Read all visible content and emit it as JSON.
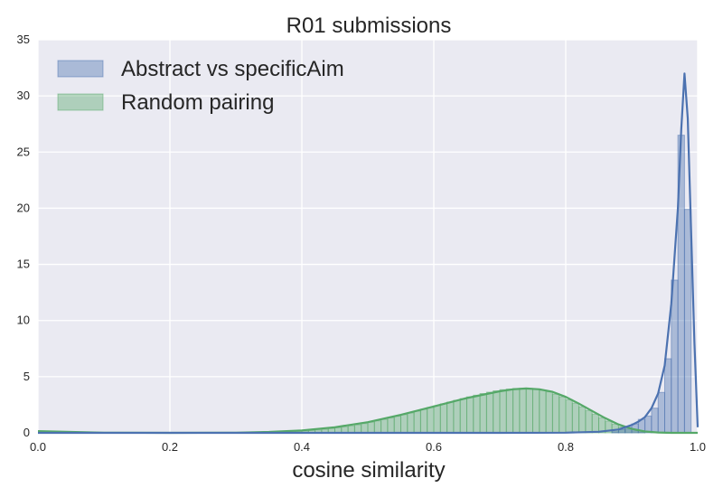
{
  "chart_data": {
    "type": "histogram",
    "title": "R01 submissions",
    "xlabel": "cosine similarity",
    "ylabel": "",
    "xlim": [
      0.0,
      1.0
    ],
    "ylim": [
      0,
      35
    ],
    "grid": true,
    "legend_position": "top-left",
    "x_ticks": [
      "0.0",
      "0.2",
      "0.4",
      "0.6",
      "0.8",
      "1.0"
    ],
    "y_ticks": [
      "0",
      "5",
      "10",
      "15",
      "20",
      "25",
      "30",
      "35"
    ],
    "colors": {
      "plot_background": "#eaeaf2",
      "grid": "#ffffff",
      "series1": "#4c72b0",
      "series2": "#55a868"
    },
    "series": [
      {
        "name": "Abstract vs specificAim",
        "hist": {
          "bin_left_edges": [
            0.87,
            0.88,
            0.89,
            0.9,
            0.91,
            0.92,
            0.93,
            0.94,
            0.95,
            0.96,
            0.97,
            0.98,
            0.99
          ],
          "bin_width": 0.01,
          "heights": [
            0.1,
            0.3,
            0.5,
            0.8,
            1.2,
            1.5,
            2.2,
            3.6,
            6.6,
            13.6,
            26.5,
            19.9,
            0
          ]
        },
        "kde": {
          "x": [
            0.0,
            0.7,
            0.8,
            0.85,
            0.88,
            0.9,
            0.91,
            0.92,
            0.93,
            0.94,
            0.95,
            0.96,
            0.97,
            0.975,
            0.98,
            0.985,
            0.99,
            0.995,
            1.0
          ],
          "y": [
            0,
            0,
            0.02,
            0.1,
            0.3,
            0.7,
            1.0,
            1.4,
            2.2,
            3.5,
            6.0,
            11.5,
            20.0,
            27.0,
            32.0,
            28.0,
            18.0,
            8.0,
            0.5
          ]
        }
      },
      {
        "name": "Random pairing",
        "hist": {
          "bin_left_edges": [
            0.36,
            0.37,
            0.38,
            0.39,
            0.4,
            0.41,
            0.42,
            0.43,
            0.44,
            0.45,
            0.46,
            0.47,
            0.48,
            0.49,
            0.5,
            0.51,
            0.52,
            0.53,
            0.54,
            0.55,
            0.56,
            0.57,
            0.58,
            0.59,
            0.6,
            0.61,
            0.62,
            0.63,
            0.64,
            0.65,
            0.66,
            0.67,
            0.68,
            0.69,
            0.7,
            0.71,
            0.72,
            0.73,
            0.74,
            0.75,
            0.76,
            0.77,
            0.78,
            0.79,
            0.8,
            0.81,
            0.82,
            0.83,
            0.84,
            0.85,
            0.86,
            0.87,
            0.88,
            0.89,
            0.9,
            0.91
          ],
          "bin_width": 0.01,
          "heights": [
            0.05,
            0.08,
            0.1,
            0.13,
            0.17,
            0.21,
            0.26,
            0.32,
            0.38,
            0.45,
            0.53,
            0.62,
            0.72,
            0.83,
            0.95,
            1.07,
            1.2,
            1.34,
            1.48,
            1.63,
            1.78,
            1.94,
            2.1,
            2.26,
            2.42,
            2.58,
            2.74,
            2.9,
            3.05,
            3.2,
            3.35,
            3.5,
            3.62,
            3.74,
            3.84,
            3.9,
            3.95,
            3.97,
            3.95,
            3.9,
            3.8,
            3.65,
            3.45,
            3.22,
            2.95,
            2.65,
            2.33,
            2.0,
            1.67,
            1.35,
            1.05,
            0.78,
            0.54,
            0.34,
            0.18,
            0.07
          ]
        },
        "kde": {
          "x": [
            0.0,
            0.05,
            0.1,
            0.2,
            0.3,
            0.35,
            0.4,
            0.45,
            0.5,
            0.55,
            0.6,
            0.65,
            0.7,
            0.72,
            0.74,
            0.76,
            0.78,
            0.8,
            0.82,
            0.84,
            0.86,
            0.88,
            0.9,
            0.92,
            0.94,
            0.96,
            0.98,
            1.0
          ],
          "y": [
            0.15,
            0.08,
            0.02,
            0.0,
            0.02,
            0.08,
            0.22,
            0.5,
            0.95,
            1.6,
            2.35,
            3.1,
            3.7,
            3.88,
            3.95,
            3.88,
            3.65,
            3.2,
            2.6,
            1.95,
            1.3,
            0.75,
            0.35,
            0.12,
            0.03,
            0.0,
            0.0,
            0.0
          ]
        }
      }
    ]
  }
}
